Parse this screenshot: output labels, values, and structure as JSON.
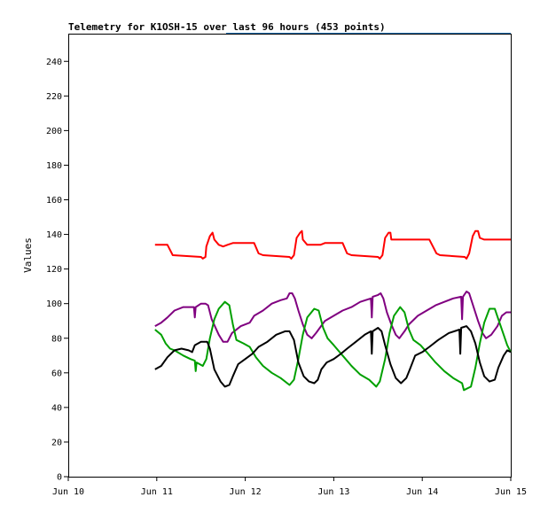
{
  "chart_data": {
    "type": "line",
    "title": "Telemetry for K1OSH-15 over last 96 hours (453 points)",
    "xlabel": "",
    "ylabel": "Values",
    "xlim": [
      0,
      5
    ],
    "ylim": [
      0,
      256
    ],
    "yticks": [
      0,
      20,
      40,
      60,
      80,
      100,
      120,
      140,
      160,
      180,
      200,
      220,
      240
    ],
    "xticks": [
      {
        "value": 0,
        "label": "Jun 10"
      },
      {
        "value": 1,
        "label": "Jun 11"
      },
      {
        "value": 2,
        "label": "Jun 12"
      },
      {
        "value": 3,
        "label": "Jun 13"
      },
      {
        "value": 4,
        "label": "Jun 14"
      },
      {
        "value": 5,
        "label": "Jun 15"
      }
    ],
    "grid": false,
    "series": [
      {
        "color": "#ff0000",
        "points": [
          [
            0.98,
            134
          ],
          [
            1.12,
            134
          ],
          [
            1.18,
            128
          ],
          [
            1.5,
            127
          ],
          [
            1.52,
            126
          ],
          [
            1.55,
            127
          ],
          [
            1.56,
            133
          ],
          [
            1.6,
            139
          ],
          [
            1.63,
            141
          ],
          [
            1.65,
            137
          ],
          [
            1.7,
            134
          ],
          [
            1.75,
            133
          ],
          [
            1.8,
            134
          ],
          [
            1.86,
            135
          ],
          [
            1.95,
            135
          ],
          [
            2.1,
            135
          ],
          [
            2.15,
            129
          ],
          [
            2.2,
            128
          ],
          [
            2.5,
            127
          ],
          [
            2.52,
            126
          ],
          [
            2.55,
            128
          ],
          [
            2.58,
            138
          ],
          [
            2.62,
            141
          ],
          [
            2.64,
            142
          ],
          [
            2.65,
            137
          ],
          [
            2.7,
            134
          ],
          [
            2.85,
            134
          ],
          [
            2.9,
            135
          ],
          [
            3.1,
            135
          ],
          [
            3.15,
            129
          ],
          [
            3.2,
            128
          ],
          [
            3.5,
            127
          ],
          [
            3.52,
            126
          ],
          [
            3.55,
            128
          ],
          [
            3.58,
            138
          ],
          [
            3.62,
            141
          ],
          [
            3.64,
            141
          ],
          [
            3.65,
            137
          ],
          [
            3.7,
            137
          ],
          [
            4.08,
            137
          ],
          [
            4.12,
            133
          ],
          [
            4.16,
            129
          ],
          [
            4.2,
            128
          ],
          [
            4.48,
            127
          ],
          [
            4.5,
            126
          ],
          [
            4.53,
            129
          ],
          [
            4.57,
            139
          ],
          [
            4.6,
            142
          ],
          [
            4.63,
            142
          ],
          [
            4.65,
            138
          ],
          [
            4.7,
            137
          ],
          [
            5.0,
            137
          ]
        ]
      },
      {
        "color": "#800080",
        "points": [
          [
            0.98,
            87
          ],
          [
            1.05,
            89
          ],
          [
            1.12,
            92
          ],
          [
            1.2,
            96
          ],
          [
            1.3,
            98
          ],
          [
            1.42,
            98
          ],
          [
            1.43,
            92
          ],
          [
            1.44,
            98
          ],
          [
            1.5,
            100
          ],
          [
            1.55,
            100
          ],
          [
            1.58,
            99
          ],
          [
            1.62,
            91
          ],
          [
            1.7,
            82
          ],
          [
            1.75,
            78
          ],
          [
            1.8,
            78
          ],
          [
            1.85,
            83
          ],
          [
            1.95,
            87
          ],
          [
            2.05,
            89
          ],
          [
            2.1,
            93
          ],
          [
            2.2,
            96
          ],
          [
            2.3,
            100
          ],
          [
            2.4,
            102
          ],
          [
            2.47,
            103
          ],
          [
            2.5,
            106
          ],
          [
            2.53,
            106
          ],
          [
            2.56,
            103
          ],
          [
            2.6,
            96
          ],
          [
            2.65,
            88
          ],
          [
            2.7,
            82
          ],
          [
            2.75,
            80
          ],
          [
            2.8,
            83
          ],
          [
            2.9,
            90
          ],
          [
            3.0,
            93
          ],
          [
            3.1,
            96
          ],
          [
            3.2,
            98
          ],
          [
            3.3,
            101
          ],
          [
            3.42,
            103
          ],
          [
            3.43,
            92
          ],
          [
            3.44,
            104
          ],
          [
            3.5,
            105
          ],
          [
            3.53,
            106
          ],
          [
            3.56,
            103
          ],
          [
            3.6,
            95
          ],
          [
            3.65,
            88
          ],
          [
            3.7,
            82
          ],
          [
            3.74,
            80
          ],
          [
            3.8,
            84
          ],
          [
            3.85,
            88
          ],
          [
            3.95,
            93
          ],
          [
            4.05,
            96
          ],
          [
            4.15,
            99
          ],
          [
            4.25,
            101
          ],
          [
            4.35,
            103
          ],
          [
            4.44,
            104
          ],
          [
            4.45,
            91
          ],
          [
            4.46,
            104
          ],
          [
            4.5,
            107
          ],
          [
            4.53,
            106
          ],
          [
            4.58,
            98
          ],
          [
            4.63,
            90
          ],
          [
            4.68,
            83
          ],
          [
            4.72,
            80
          ],
          [
            4.78,
            82
          ],
          [
            4.85,
            87
          ],
          [
            4.9,
            93
          ],
          [
            4.95,
            95
          ],
          [
            5.0,
            95
          ]
        ]
      },
      {
        "color": "#00a000",
        "points": [
          [
            0.98,
            85
          ],
          [
            1.05,
            82
          ],
          [
            1.1,
            77
          ],
          [
            1.15,
            74
          ],
          [
            1.2,
            73
          ],
          [
            1.3,
            70
          ],
          [
            1.38,
            68
          ],
          [
            1.43,
            67
          ],
          [
            1.44,
            61
          ],
          [
            1.45,
            66
          ],
          [
            1.52,
            64
          ],
          [
            1.56,
            68
          ],
          [
            1.6,
            80
          ],
          [
            1.65,
            91
          ],
          [
            1.7,
            97
          ],
          [
            1.77,
            101
          ],
          [
            1.82,
            99
          ],
          [
            1.86,
            88
          ],
          [
            1.9,
            79
          ],
          [
            1.98,
            77
          ],
          [
            2.05,
            75
          ],
          [
            2.12,
            69
          ],
          [
            2.2,
            64
          ],
          [
            2.3,
            60
          ],
          [
            2.4,
            57
          ],
          [
            2.5,
            53
          ],
          [
            2.55,
            56
          ],
          [
            2.6,
            68
          ],
          [
            2.65,
            82
          ],
          [
            2.7,
            92
          ],
          [
            2.78,
            97
          ],
          [
            2.83,
            96
          ],
          [
            2.88,
            86
          ],
          [
            2.93,
            80
          ],
          [
            3.0,
            76
          ],
          [
            3.1,
            70
          ],
          [
            3.2,
            64
          ],
          [
            3.3,
            59
          ],
          [
            3.4,
            56
          ],
          [
            3.48,
            52
          ],
          [
            3.52,
            55
          ],
          [
            3.58,
            68
          ],
          [
            3.63,
            83
          ],
          [
            3.68,
            93
          ],
          [
            3.75,
            98
          ],
          [
            3.8,
            95
          ],
          [
            3.85,
            85
          ],
          [
            3.9,
            79
          ],
          [
            3.98,
            76
          ],
          [
            4.05,
            72
          ],
          [
            4.15,
            66
          ],
          [
            4.25,
            61
          ],
          [
            4.35,
            57
          ],
          [
            4.45,
            54
          ],
          [
            4.47,
            50
          ],
          [
            4.55,
            52
          ],
          [
            4.6,
            63
          ],
          [
            4.65,
            77
          ],
          [
            4.7,
            89
          ],
          [
            4.76,
            97
          ],
          [
            4.82,
            97
          ],
          [
            4.86,
            91
          ],
          [
            4.92,
            82
          ],
          [
            4.96,
            76
          ],
          [
            5.0,
            72
          ]
        ]
      },
      {
        "color": "#000000",
        "points": [
          [
            0.98,
            62
          ],
          [
            1.05,
            64
          ],
          [
            1.12,
            69
          ],
          [
            1.2,
            73
          ],
          [
            1.28,
            74
          ],
          [
            1.36,
            73
          ],
          [
            1.4,
            72
          ],
          [
            1.43,
            76
          ],
          [
            1.5,
            78
          ],
          [
            1.57,
            78
          ],
          [
            1.6,
            74
          ],
          [
            1.65,
            62
          ],
          [
            1.72,
            55
          ],
          [
            1.77,
            52
          ],
          [
            1.82,
            53
          ],
          [
            1.86,
            58
          ],
          [
            1.92,
            65
          ],
          [
            2.0,
            68
          ],
          [
            2.08,
            71
          ],
          [
            2.15,
            75
          ],
          [
            2.25,
            78
          ],
          [
            2.35,
            82
          ],
          [
            2.45,
            84
          ],
          [
            2.5,
            84
          ],
          [
            2.55,
            79
          ],
          [
            2.6,
            66
          ],
          [
            2.66,
            58
          ],
          [
            2.72,
            55
          ],
          [
            2.78,
            54
          ],
          [
            2.82,
            56
          ],
          [
            2.86,
            62
          ],
          [
            2.92,
            66
          ],
          [
            3.0,
            68
          ],
          [
            3.08,
            71
          ],
          [
            3.15,
            74
          ],
          [
            3.25,
            78
          ],
          [
            3.35,
            82
          ],
          [
            3.42,
            84
          ],
          [
            3.43,
            71
          ],
          [
            3.44,
            84
          ],
          [
            3.5,
            86
          ],
          [
            3.54,
            84
          ],
          [
            3.58,
            76
          ],
          [
            3.64,
            65
          ],
          [
            3.7,
            57
          ],
          [
            3.76,
            54
          ],
          [
            3.82,
            57
          ],
          [
            3.86,
            62
          ],
          [
            3.92,
            70
          ],
          [
            4.0,
            72
          ],
          [
            4.08,
            75
          ],
          [
            4.18,
            79
          ],
          [
            4.3,
            83
          ],
          [
            4.42,
            85
          ],
          [
            4.43,
            71
          ],
          [
            4.44,
            86
          ],
          [
            4.5,
            87
          ],
          [
            4.55,
            84
          ],
          [
            4.6,
            77
          ],
          [
            4.65,
            66
          ],
          [
            4.7,
            58
          ],
          [
            4.76,
            55
          ],
          [
            4.82,
            56
          ],
          [
            4.86,
            63
          ],
          [
            4.92,
            70
          ],
          [
            4.96,
            73
          ],
          [
            5.0,
            72
          ]
        ]
      }
    ]
  }
}
